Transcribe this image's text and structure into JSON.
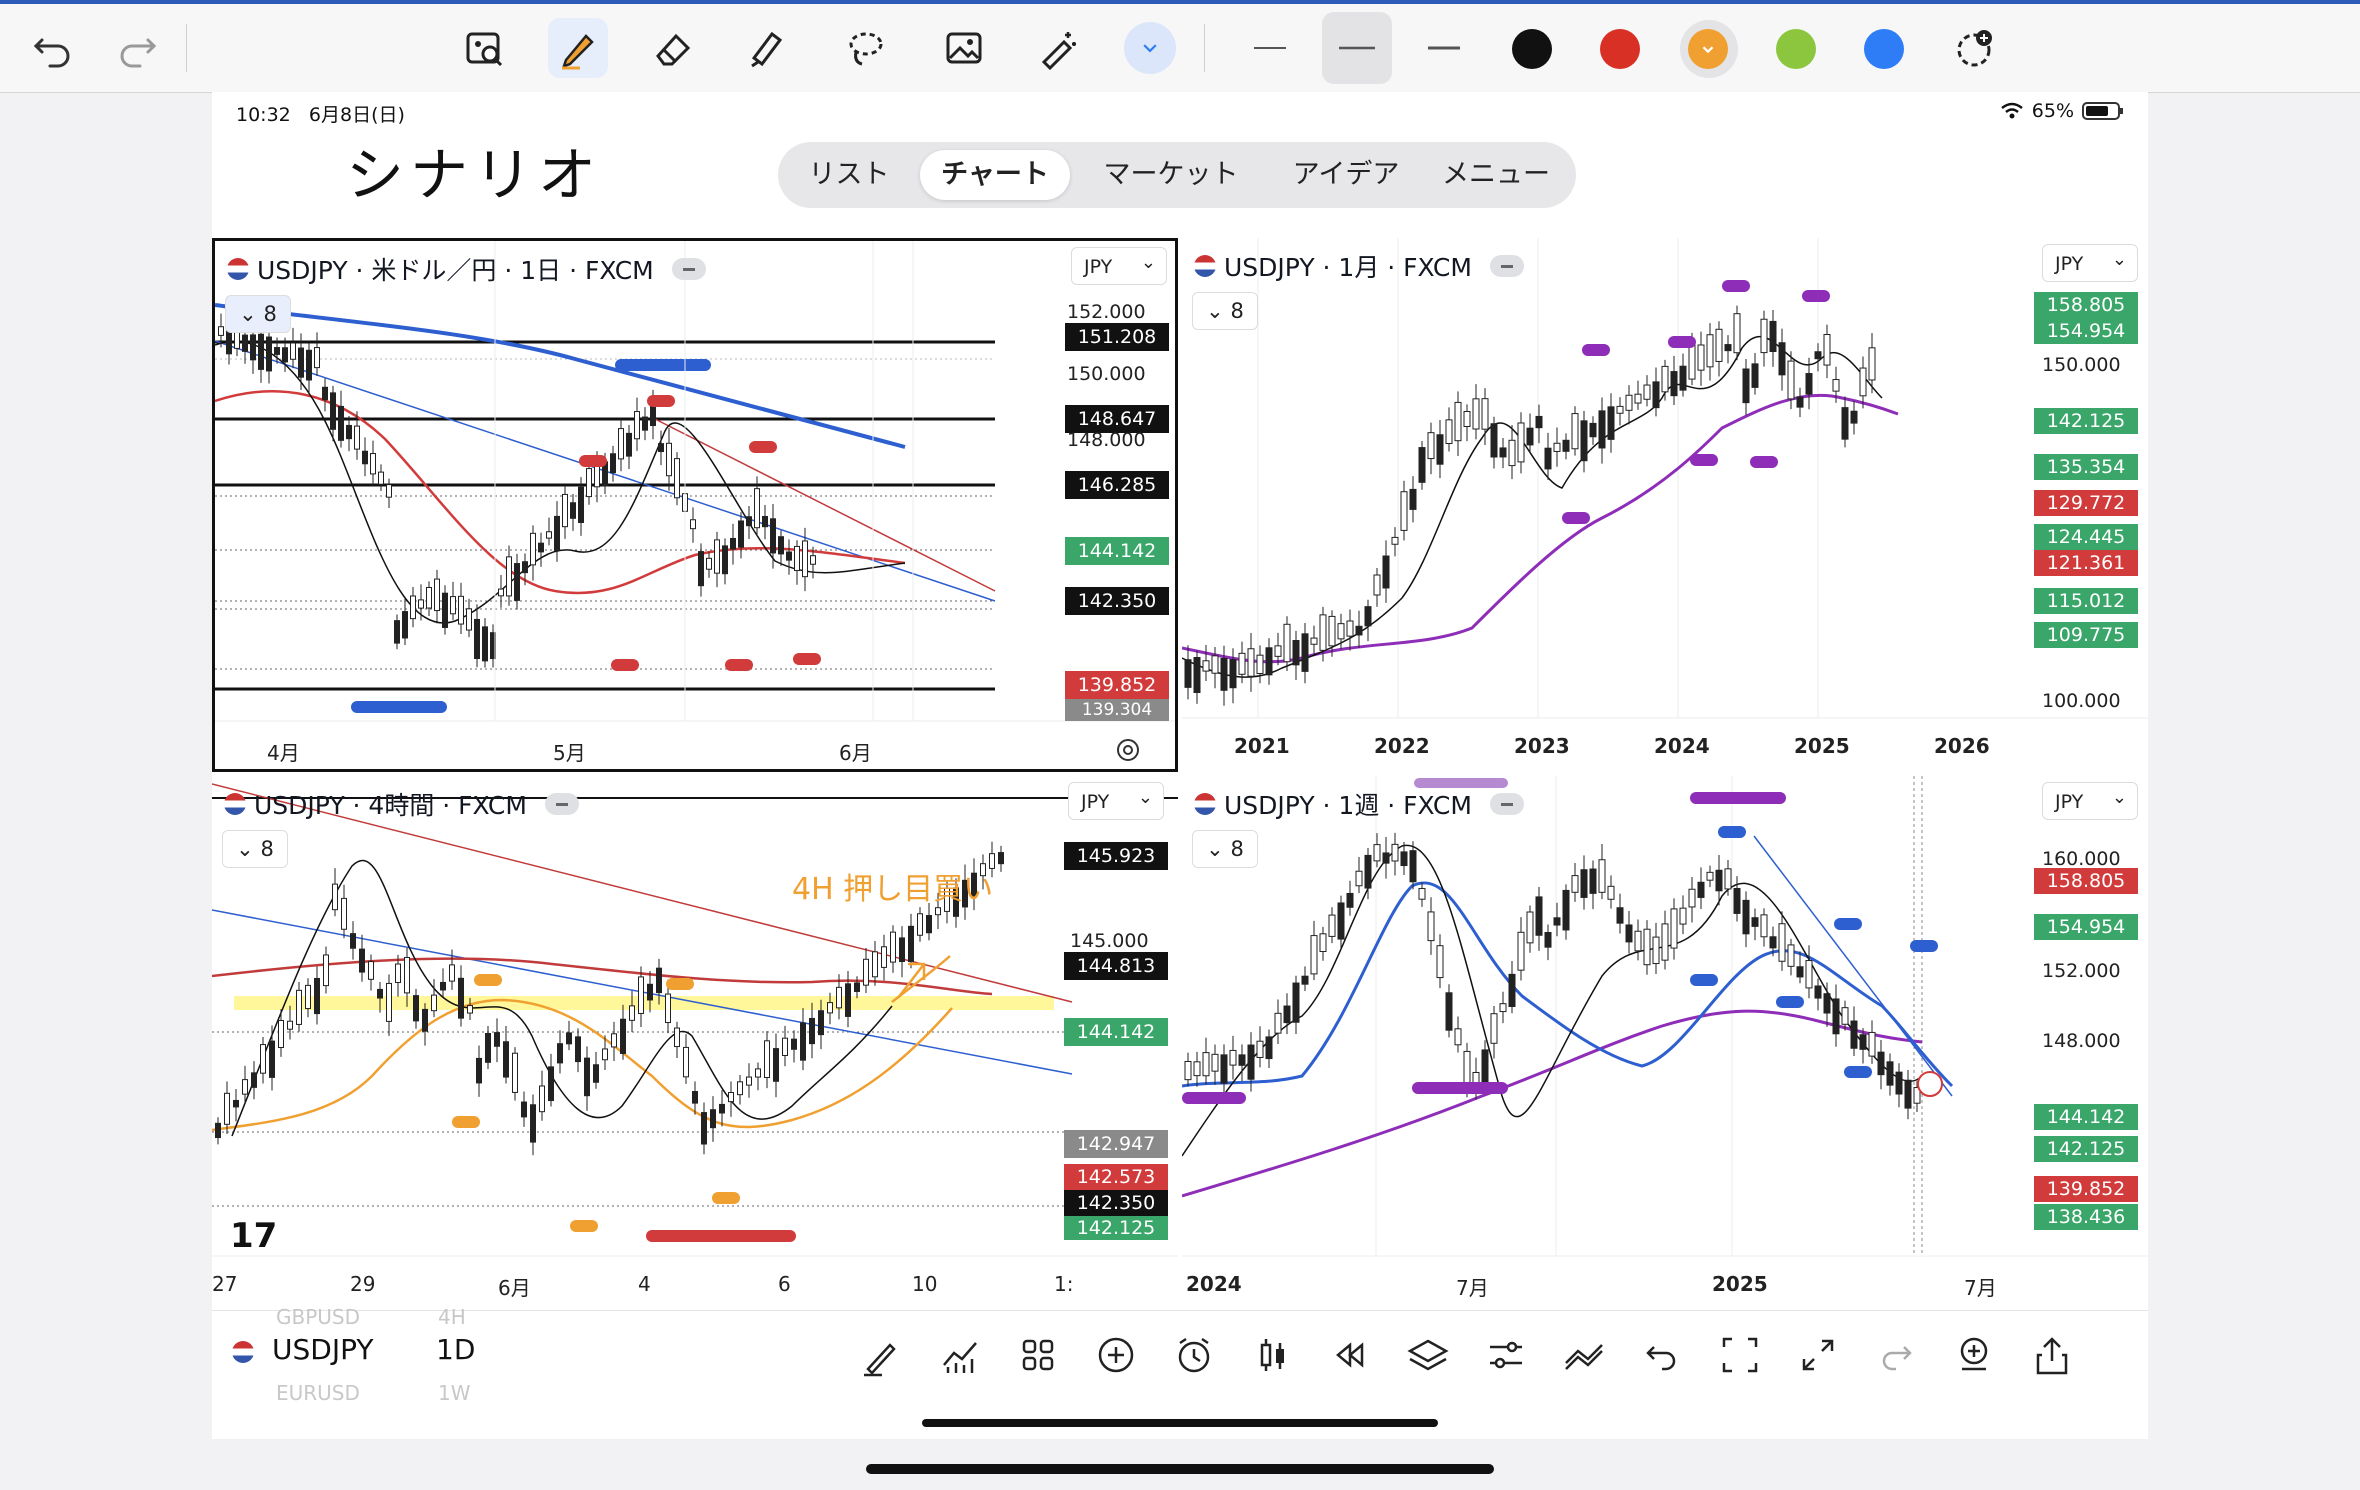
{
  "toolbar": {
    "undo": "undo-icon",
    "redo": "redo-icon",
    "tools": [
      "zoom-image-icon",
      "pen-icon",
      "eraser-icon",
      "highlighter-icon",
      "lasso-icon",
      "image-icon",
      "magic-wand-icon",
      "chevron-down-icon"
    ],
    "colors": [
      "#111111",
      "#d93025",
      "#f0a030",
      "#8cc63f",
      "#2e7cf6"
    ],
    "selected_color": "#f0a030"
  },
  "status": {
    "time": "10:32",
    "date": "6月8日(日)",
    "battery": "65%"
  },
  "note_title": "シナリオ",
  "tabs": [
    {
      "label": "リスト"
    },
    {
      "label": "チャート"
    },
    {
      "label": "マーケット"
    },
    {
      "label": "アイデア"
    },
    {
      "label": "メニュー"
    }
  ],
  "panels": {
    "daily": {
      "title": "USDJPY · 米ドル／円 · 1日 · FXCM",
      "currency": "JPY",
      "indicator_count": "8",
      "prices": [
        "152.000",
        "151.208",
        "150.000",
        "148.647",
        "148.000",
        "146.285",
        "144.142",
        "142.350",
        "139.852",
        "139.304"
      ],
      "xlabels": [
        "4月",
        "5月",
        "6月"
      ]
    },
    "monthly": {
      "title": "USDJPY · 1月 · FXCM",
      "currency": "JPY",
      "indicator_count": "8",
      "prices": [
        "158.805",
        "154.954",
        "150.000",
        "142.125",
        "135.354",
        "129.772",
        "124.445",
        "121.361",
        "115.012",
        "109.775",
        "100.000"
      ],
      "xlabels": [
        "2021",
        "2022",
        "2023",
        "2024",
        "2025",
        "2026"
      ]
    },
    "h4": {
      "title": "USDJPY · 4時間 · FXCM",
      "currency": "JPY",
      "indicator_count": "8",
      "note": "4H  押し目買い",
      "prices": [
        "145.923",
        "145.000",
        "144.813",
        "144.142",
        "142.947",
        "142.573",
        "142.350",
        "142.125"
      ],
      "xlabels": [
        "27",
        "29",
        "6月",
        "4",
        "6",
        "10",
        "1:"
      ]
    },
    "weekly": {
      "title": "USDJPY · 1週 · FXCM",
      "currency": "JPY",
      "indicator_count": "8",
      "prices": [
        "160.000",
        "158.805",
        "154.954",
        "152.000",
        "148.000",
        "144.142",
        "142.125",
        "139.852",
        "138.436"
      ],
      "xlabels": [
        "2024",
        "7月",
        "2025",
        "7月"
      ]
    }
  },
  "bottombar": {
    "symbol": "USDJPY",
    "interval": "1D",
    "ghost_above": "GBPUSD",
    "ghost_above_tf": "4H",
    "ghost_below": "EURUSD",
    "ghost_below_tf": "1W"
  }
}
